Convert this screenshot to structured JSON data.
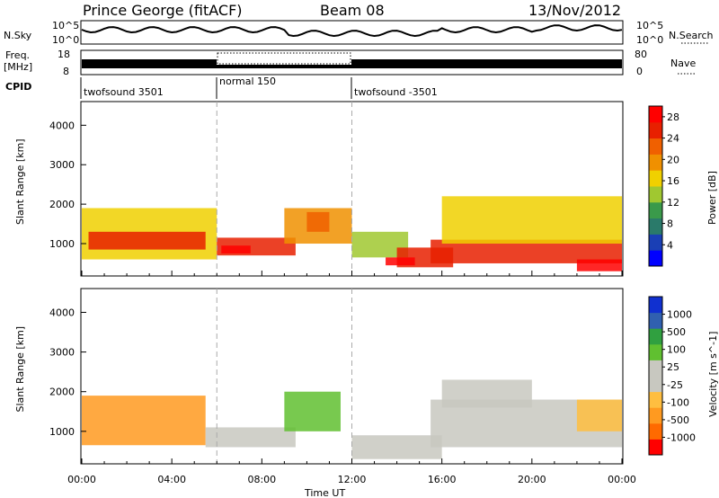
{
  "header": {
    "title": "Prince George (fitACF)",
    "beam": "Beam 08",
    "date": "13/Nov/2012"
  },
  "top_panels": {
    "nsky_label": "N.Sky",
    "nsky_ticks": [
      "10^5",
      "10^0"
    ],
    "nsearch_label": "N.Search",
    "nsearch_ticks": [
      "10^5",
      "10^0"
    ],
    "freq_label_line1": "Freq.",
    "freq_label_line2": "[MHz]",
    "freq_ticks": [
      "18",
      "8"
    ],
    "nave_label": "Nave",
    "nave_ticks": [
      "80",
      "0"
    ],
    "cpid_label": "CPID",
    "cpid_segments": [
      {
        "label": "twofsound 3501",
        "start": 0,
        "end": 6
      },
      {
        "label": "normal 150",
        "start": 6,
        "end": 12
      },
      {
        "label": "twofsound -3501",
        "start": 12,
        "end": 24
      }
    ]
  },
  "colors": {
    "power_scale": [
      "#0000ff",
      "#1a3fb5",
      "#2a7a6a",
      "#3a9a4a",
      "#a0c830",
      "#f0d000",
      "#f09000",
      "#f06000",
      "#e82000",
      "#ff0000"
    ],
    "velocity_scale": [
      "#ff0000",
      "#ff6a00",
      "#ff9a20",
      "#ffbe40",
      "#c8c8c0",
      "#c8c8c0",
      "#60c030",
      "#30a040",
      "#3060b0",
      "#1030d0"
    ]
  },
  "chart_data": [
    {
      "type": "heatmap",
      "title": "",
      "xlabel": "Time UT",
      "ylabel": "Slant Range [km]",
      "xlim": [
        0,
        24
      ],
      "ylim": [
        180,
        4600
      ],
      "x_ticks": [
        "00:00",
        "04:00",
        "08:00",
        "12:00",
        "16:00",
        "20:00",
        "00:00"
      ],
      "y_ticks": [
        "1000",
        "2000",
        "3000",
        "4000"
      ],
      "colorbar_label": "Power [dB]",
      "colorbar_ticks": [
        "4",
        "8",
        "12",
        "16",
        "20",
        "24",
        "28"
      ],
      "colorbar_range": [
        0,
        30
      ],
      "bands": [
        {
          "t0": 0.0,
          "t1": 6.0,
          "r0": 600,
          "r1": 1900,
          "value": 16
        },
        {
          "t0": 0.3,
          "t1": 5.5,
          "r0": 850,
          "r1": 1300,
          "value": 26
        },
        {
          "t0": 6.0,
          "t1": 9.5,
          "r0": 700,
          "r1": 1150,
          "value": 24
        },
        {
          "t0": 6.2,
          "t1": 7.5,
          "r0": 750,
          "r1": 950,
          "value": 29
        },
        {
          "t0": 9.0,
          "t1": 12.0,
          "r0": 1000,
          "r1": 1900,
          "value": 18
        },
        {
          "t0": 10.0,
          "t1": 11.0,
          "r0": 1300,
          "r1": 1800,
          "value": 22
        },
        {
          "t0": 12.0,
          "t1": 14.5,
          "r0": 650,
          "r1": 1300,
          "value": 14
        },
        {
          "t0": 14.0,
          "t1": 16.5,
          "r0": 400,
          "r1": 900,
          "value": 24
        },
        {
          "t0": 13.5,
          "t1": 14.8,
          "r0": 450,
          "r1": 650,
          "value": 29
        },
        {
          "t0": 15.5,
          "t1": 24.0,
          "r0": 500,
          "r1": 1100,
          "value": 26
        },
        {
          "t0": 16.0,
          "t1": 24.0,
          "r0": 1000,
          "r1": 2200,
          "value": 15
        },
        {
          "t0": 22.0,
          "t1": 24.0,
          "r0": 300,
          "r1": 600,
          "value": 28
        }
      ]
    },
    {
      "type": "heatmap",
      "title": "",
      "xlabel": "Time UT",
      "ylabel": "Slant Range [km]",
      "xlim": [
        0,
        24
      ],
      "ylim": [
        180,
        4600
      ],
      "x_ticks": [
        "00:00",
        "04:00",
        "08:00",
        "12:00",
        "16:00",
        "20:00",
        "00:00"
      ],
      "y_ticks": [
        "1000",
        "2000",
        "3000",
        "4000"
      ],
      "colorbar_label": "Velocity [m s^-1]",
      "colorbar_ticks": [
        "1000",
        "500",
        "100",
        "25",
        "-25",
        "-100",
        "-500",
        "-1000"
      ],
      "colorbar_range": [
        -1200,
        1200
      ],
      "bands": [
        {
          "t0": 0.0,
          "t1": 5.5,
          "r0": 650,
          "r1": 1900,
          "value": -550
        },
        {
          "t0": 5.5,
          "t1": 9.5,
          "r0": 600,
          "r1": 1100,
          "value": -200
        },
        {
          "t0": 9.0,
          "t1": 11.5,
          "r0": 1000,
          "r1": 2000,
          "value": 300
        },
        {
          "t0": 12.0,
          "t1": 16.0,
          "r0": 300,
          "r1": 900,
          "value": 80
        },
        {
          "t0": 15.5,
          "t1": 24.0,
          "r0": 600,
          "r1": 1800,
          "value": 0
        },
        {
          "t0": 16.0,
          "t1": 20.0,
          "r0": 1600,
          "r1": 2300,
          "value": -150
        },
        {
          "t0": 22.0,
          "t1": 24.0,
          "r0": 1000,
          "r1": 1800,
          "value": -300
        }
      ]
    }
  ]
}
